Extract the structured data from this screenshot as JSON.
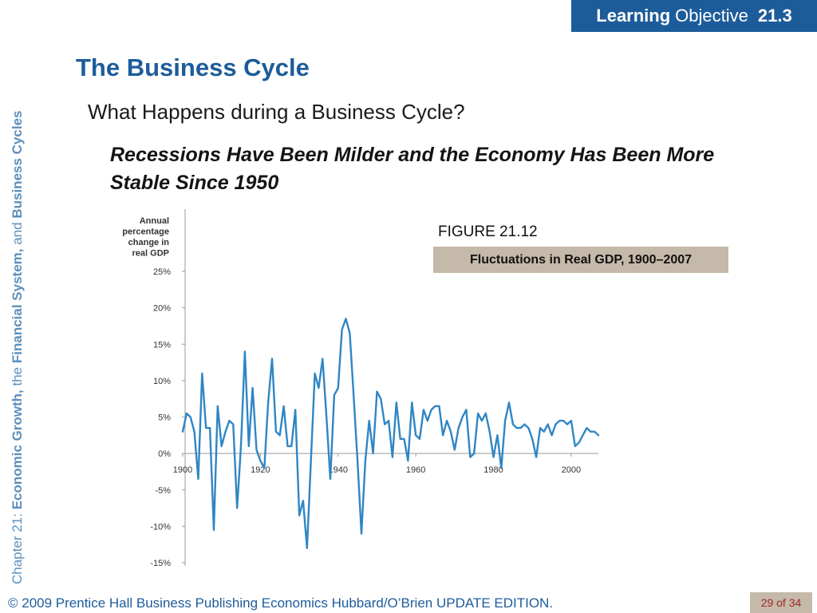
{
  "header": {
    "learning": "Learning",
    "objective": "Objective",
    "number": "21.3"
  },
  "sidebar": {
    "chapter": "Chapter 21:",
    "part1": "Economic Growth,",
    "the": "the",
    "part2": "Financial System,",
    "and": "and",
    "part3": "Business Cycles"
  },
  "slide": {
    "title": "The Business Cycle",
    "subtitle": "What Happens during a Business Cycle?",
    "heading": "Recessions Have Been Milder and the Economy Has Been More Stable Since 1950",
    "figure_label": "FIGURE 21.12",
    "figure_caption": "Fluctuations in Real GDP, 1900–2007"
  },
  "chart_data": {
    "type": "line",
    "title": "",
    "xlabel": "",
    "ylabel": "Annual percentage change in real GDP",
    "ylim": [
      -15,
      25
    ],
    "xlim": [
      1900,
      2007
    ],
    "yticks": [
      "25%",
      "20%",
      "15%",
      "10%",
      "5%",
      "0%",
      "-5%",
      "-10%",
      "-15%"
    ],
    "ytick_values": [
      25,
      20,
      15,
      10,
      5,
      0,
      -5,
      -10,
      -15
    ],
    "xticks": [
      "1900",
      "1920",
      "1940",
      "1960",
      "1980",
      "2000"
    ],
    "xtick_values": [
      1900,
      1920,
      1940,
      1960,
      1980,
      2000
    ],
    "grid": false,
    "color": "#2f86c4",
    "series": [
      {
        "x": [
          1900,
          1901,
          1902,
          1903,
          1904,
          1905,
          1906,
          1907,
          1908,
          1909,
          1910,
          1911,
          1912,
          1913,
          1914,
          1915,
          1916,
          1917,
          1918,
          1919,
          1920,
          1921,
          1922,
          1923,
          1924,
          1925,
          1926,
          1927,
          1928,
          1929,
          1930,
          1931,
          1932,
          1933,
          1934,
          1935,
          1936,
          1937,
          1938,
          1939,
          1940,
          1941,
          1942,
          1943,
          1944,
          1945,
          1946,
          1947,
          1948,
          1949,
          1950,
          1951,
          1952,
          1953,
          1954,
          1955,
          1956,
          1957,
          1958,
          1959,
          1960,
          1961,
          1962,
          1963,
          1964,
          1965,
          1966,
          1967,
          1968,
          1969,
          1970,
          1971,
          1972,
          1973,
          1974,
          1975,
          1976,
          1977,
          1978,
          1979,
          1980,
          1981,
          1982,
          1983,
          1984,
          1985,
          1986,
          1987,
          1988,
          1989,
          1990,
          1991,
          1992,
          1993,
          1994,
          1995,
          1996,
          1997,
          1998,
          1999,
          2000,
          2001,
          2002,
          2003,
          2004,
          2005,
          2006,
          2007
        ],
        "values": [
          3,
          5.5,
          5,
          3,
          -3.5,
          11,
          3.5,
          3.5,
          -10.5,
          6.5,
          1,
          3,
          4.5,
          4,
          -7.5,
          1,
          14,
          1,
          9,
          0.5,
          -1,
          -2,
          7,
          13,
          3,
          2.5,
          6.5,
          1,
          1,
          6,
          -8.5,
          -6.5,
          -13,
          -1,
          11,
          9,
          13,
          5,
          -3.5,
          8,
          9,
          17,
          18.5,
          16.5,
          8,
          -1,
          -11,
          -1,
          4.5,
          0,
          8.5,
          7.5,
          4,
          4.5,
          -0.5,
          7,
          2,
          2,
          -1,
          7,
          2.5,
          2,
          6,
          4.5,
          6,
          6.5,
          6.5,
          2.5,
          4.5,
          3,
          0.5,
          3.5,
          5,
          6,
          -0.5,
          0,
          5.5,
          4.5,
          5.5,
          3,
          -0.5,
          2.5,
          -2,
          4.5,
          7,
          4,
          3.5,
          3.5,
          4,
          3.5,
          2,
          -0.5,
          3.5,
          3,
          4,
          2.5,
          4,
          4.5,
          4.5,
          4,
          4.5,
          1,
          1.5,
          2.5,
          3.5,
          3,
          3,
          2.5
        ]
      }
    ]
  },
  "footer": {
    "copyright": "© 2009 Prentice Hall Business Publishing Economics  Hubbard/O’Brien UPDATE EDITION.",
    "page": "29 of 34"
  }
}
